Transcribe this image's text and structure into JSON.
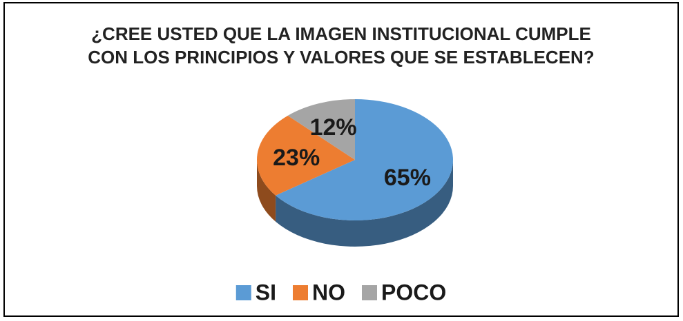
{
  "chart_data": {
    "type": "pie",
    "title": "¿CREE USTED QUE LA IMAGEN INSTITUCIONAL CUMPLE CON LOS PRINCIPIOS Y VALORES QUE SE ESTABLECEN?",
    "categories": [
      "SI",
      "NO",
      "POCO"
    ],
    "values": [
      65,
      23,
      12
    ],
    "value_labels": [
      "65%",
      "23%",
      "12%"
    ],
    "colors": [
      "#5b9bd5",
      "#ed7d31",
      "#a5a5a5"
    ],
    "legend": "bottom"
  }
}
